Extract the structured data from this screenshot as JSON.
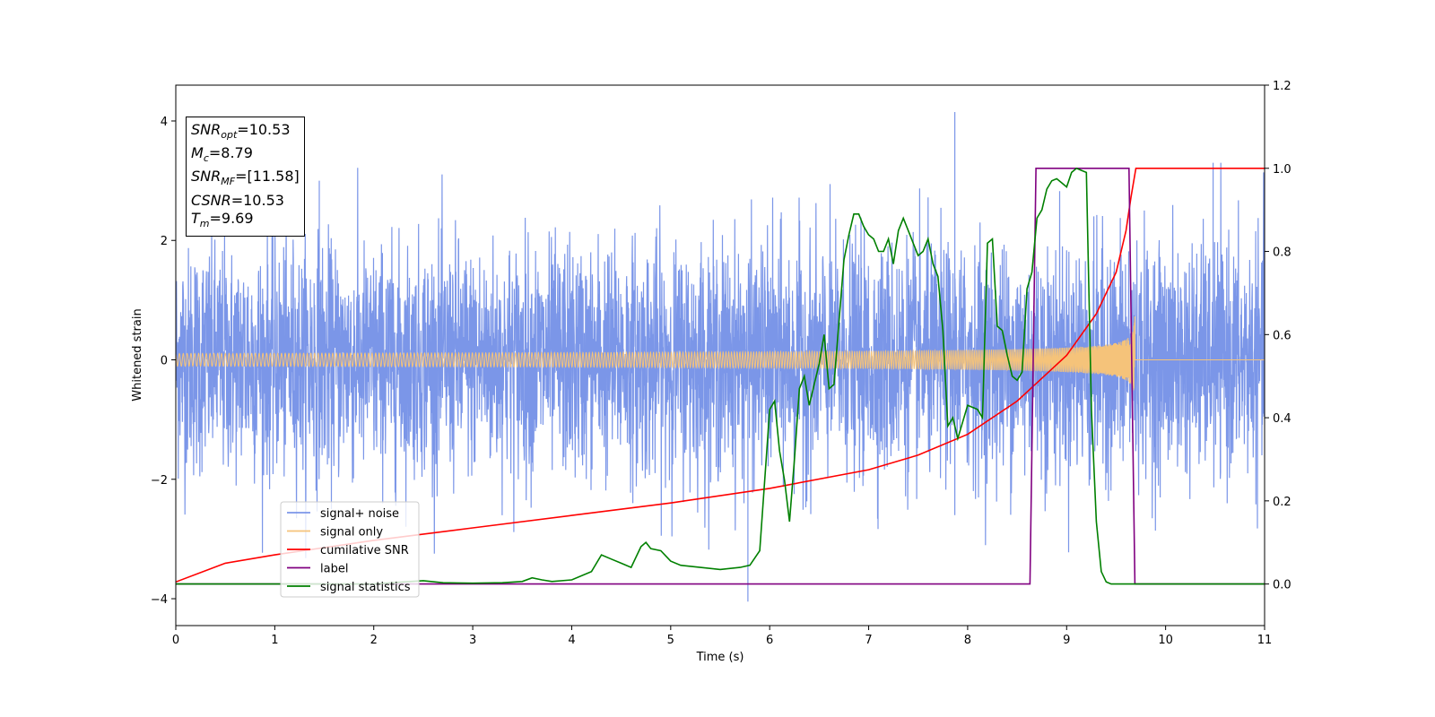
{
  "chart_data": {
    "type": "line",
    "xlabel": "Time (s)",
    "ylabel": "Whitened strain",
    "xlim": [
      0,
      11
    ],
    "ylim": [
      -4.45,
      4.6
    ],
    "y2lim": [
      -0.1,
      1.2
    ],
    "xticks": [
      "0",
      "1",
      "2",
      "3",
      "4",
      "5",
      "6",
      "7",
      "8",
      "9",
      "10",
      "11"
    ],
    "yticks": [
      "4",
      "2",
      "0",
      "−2",
      "−4"
    ],
    "y2ticks": [
      "1.2",
      "1.0",
      "0.8",
      "0.6",
      "0.4",
      "0.2",
      "0.0"
    ],
    "grid": false,
    "legend_position": "bottom-left",
    "annotation": {
      "snr_opt": {
        "base": "SNR",
        "sub": "opt",
        "value": "=10.53"
      },
      "mc": {
        "base": "M",
        "sub": "c",
        "value": "=8.79"
      },
      "snr_mf": {
        "base": "SNR",
        "sub": "MF",
        "value": "=[11.58]"
      },
      "csnr": {
        "base": "CSNR",
        "value": "=10.53"
      },
      "tm": {
        "base": "T",
        "sub": "m",
        "value": "=9.69"
      }
    },
    "series": [
      {
        "name": "signal+ noise",
        "color": "#7b96e8",
        "axis": "left",
        "description": "whitened noise, roughly ±2.5 envelope with spikes up to 4.2"
      },
      {
        "name": "signal only",
        "color": "#f5c37a",
        "axis": "left",
        "merger_time": 9.69,
        "peak_amplitude": 0.75
      },
      {
        "name": "cumilative SNR",
        "color": "#ff0000",
        "axis": "right",
        "x": [
          0,
          0.5,
          1,
          2,
          3,
          4,
          5,
          6,
          7,
          7.5,
          8,
          8.5,
          9,
          9.3,
          9.5,
          9.6,
          9.65,
          9.7,
          11
        ],
        "y": [
          0.005,
          0.05,
          0.07,
          0.105,
          0.135,
          0.165,
          0.195,
          0.23,
          0.275,
          0.31,
          0.36,
          0.44,
          0.55,
          0.65,
          0.75,
          0.85,
          0.93,
          1.0,
          1.0
        ]
      },
      {
        "name": "label",
        "color": "#800080",
        "axis": "right",
        "x": [
          0,
          8.63,
          8.69,
          9.63,
          9.69,
          11
        ],
        "y": [
          0,
          0,
          1,
          1,
          0,
          0
        ]
      },
      {
        "name": "signal statistics",
        "color": "#008000",
        "axis": "right",
        "x": [
          0,
          1,
          2,
          2.3,
          2.5,
          2.7,
          3,
          3.3,
          3.5,
          3.6,
          3.7,
          3.8,
          4,
          4.2,
          4.3,
          4.4,
          4.5,
          4.6,
          4.7,
          4.75,
          4.8,
          4.9,
          5,
          5.1,
          5.3,
          5.5,
          5.7,
          5.8,
          5.9,
          6,
          6.05,
          6.1,
          6.15,
          6.2,
          6.25,
          6.3,
          6.35,
          6.4,
          6.45,
          6.5,
          6.55,
          6.6,
          6.65,
          6.7,
          6.75,
          6.8,
          6.85,
          6.9,
          6.95,
          7,
          7.05,
          7.1,
          7.15,
          7.2,
          7.25,
          7.3,
          7.35,
          7.4,
          7.45,
          7.5,
          7.55,
          7.6,
          7.65,
          7.7,
          7.75,
          7.8,
          7.85,
          7.9,
          8,
          8.1,
          8.15,
          8.2,
          8.25,
          8.3,
          8.35,
          8.4,
          8.45,
          8.5,
          8.55,
          8.6,
          8.65,
          8.7,
          8.75,
          8.8,
          8.85,
          8.9,
          8.95,
          9,
          9.05,
          9.1,
          9.15,
          9.2,
          9.25,
          9.3,
          9.35,
          9.4,
          9.45,
          9.5,
          9.55,
          9.6,
          9.65,
          9.7,
          9.75,
          9.8,
          9.9,
          10,
          11
        ],
        "y": [
          0,
          0,
          0,
          0.005,
          0.008,
          0.003,
          0.002,
          0.003,
          0.006,
          0.015,
          0.01,
          0.006,
          0.01,
          0.03,
          0.07,
          0.06,
          0.05,
          0.04,
          0.09,
          0.1,
          0.085,
          0.08,
          0.055,
          0.045,
          0.04,
          0.035,
          0.04,
          0.045,
          0.08,
          0.42,
          0.44,
          0.32,
          0.25,
          0.15,
          0.3,
          0.47,
          0.5,
          0.43,
          0.48,
          0.53,
          0.6,
          0.47,
          0.48,
          0.63,
          0.78,
          0.84,
          0.89,
          0.89,
          0.86,
          0.84,
          0.83,
          0.8,
          0.8,
          0.83,
          0.77,
          0.85,
          0.88,
          0.85,
          0.82,
          0.79,
          0.8,
          0.83,
          0.77,
          0.74,
          0.61,
          0.38,
          0.4,
          0.35,
          0.43,
          0.42,
          0.4,
          0.82,
          0.83,
          0.62,
          0.61,
          0.55,
          0.5,
          0.49,
          0.51,
          0.71,
          0.75,
          0.88,
          0.9,
          0.95,
          0.97,
          0.975,
          0.965,
          0.955,
          0.99,
          1.0,
          0.995,
          0.99,
          0.42,
          0.15,
          0.03,
          0.005,
          0,
          0,
          0,
          0,
          0,
          0,
          0,
          0,
          0,
          0,
          0
        ]
      }
    ]
  }
}
